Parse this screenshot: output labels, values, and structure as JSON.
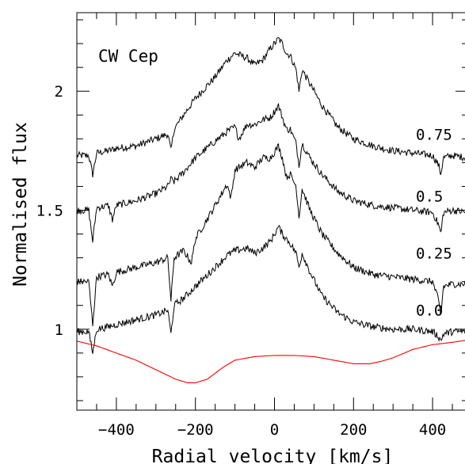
{
  "chart_data": {
    "type": "line",
    "annotation": "CW Cep",
    "xlabel": "Radial velocity [km/s]",
    "ylabel": "Normalised flux",
    "xlim": [
      -500,
      490
    ],
    "ylim": [
      0.66,
      2.33
    ],
    "x_ticks": [
      {
        "value": -400,
        "label": "−400"
      },
      {
        "value": -200,
        "label": "−200"
      },
      {
        "value": 0,
        "label": "0"
      },
      {
        "value": 200,
        "label": "200"
      },
      {
        "value": 400,
        "label": "400"
      }
    ],
    "y_ticks": [
      {
        "value": 1,
        "label": "1"
      },
      {
        "value": 1.5,
        "label": "1.5"
      },
      {
        "value": 2,
        "label": "2"
      }
    ],
    "grid": false,
    "series": [
      {
        "name": "0.75",
        "color": "#000000",
        "x": [
          -500,
          -470,
          -460,
          -450,
          -420,
          -400,
          -350,
          -300,
          -270,
          -262,
          -254,
          -230,
          -200,
          -150,
          -120,
          -100,
          -70,
          -50,
          -30,
          -10,
          10,
          20,
          30,
          40,
          55,
          62,
          70,
          90,
          120,
          160,
          200,
          250,
          300,
          350,
          400,
          415,
          421,
          427,
          450,
          490
        ],
        "y": [
          1.73,
          1.73,
          1.65,
          1.74,
          1.75,
          1.76,
          1.77,
          1.8,
          1.82,
          1.75,
          1.84,
          1.9,
          1.97,
          2.06,
          2.13,
          2.16,
          2.14,
          2.11,
          2.13,
          2.18,
          2.22,
          2.2,
          2.16,
          2.15,
          2.09,
          2.0,
          2.09,
          2.03,
          1.94,
          1.85,
          1.8,
          1.77,
          1.75,
          1.74,
          1.73,
          1.69,
          1.65,
          1.72,
          1.73,
          1.72
        ]
      },
      {
        "name": "0.5",
        "color": "#000000",
        "x": [
          -500,
          -470,
          -460,
          -450,
          -420,
          -410,
          -400,
          -350,
          -300,
          -270,
          -262,
          -254,
          -230,
          -200,
          -150,
          -120,
          -100,
          -90,
          -70,
          -50,
          -30,
          -10,
          10,
          20,
          30,
          40,
          55,
          62,
          70,
          90,
          120,
          160,
          200,
          250,
          300,
          350,
          400,
          415,
          421,
          427,
          450,
          490
        ],
        "y": [
          1.5,
          1.5,
          1.37,
          1.51,
          1.52,
          1.46,
          1.52,
          1.54,
          1.57,
          1.6,
          1.63,
          1.62,
          1.66,
          1.72,
          1.79,
          1.83,
          1.85,
          1.8,
          1.86,
          1.86,
          1.88,
          1.89,
          1.94,
          1.89,
          1.84,
          1.84,
          1.78,
          1.69,
          1.78,
          1.72,
          1.65,
          1.58,
          1.54,
          1.52,
          1.51,
          1.5,
          1.49,
          1.44,
          1.4,
          1.49,
          1.5,
          1.49
        ]
      },
      {
        "name": "0.25",
        "color": "#000000",
        "x": [
          -500,
          -470,
          -460,
          -450,
          -420,
          -410,
          -400,
          -350,
          -300,
          -270,
          -262,
          -254,
          -230,
          -210,
          -200,
          -150,
          -120,
          -110,
          -100,
          -70,
          -50,
          -30,
          -10,
          10,
          20,
          30,
          40,
          55,
          62,
          70,
          90,
          120,
          160,
          200,
          250,
          300,
          350,
          400,
          415,
          421,
          427,
          450,
          490
        ],
        "y": [
          1.2,
          1.2,
          1.02,
          1.22,
          1.23,
          1.18,
          1.24,
          1.26,
          1.28,
          1.3,
          1.12,
          1.3,
          1.33,
          1.28,
          1.38,
          1.52,
          1.61,
          1.55,
          1.67,
          1.7,
          1.68,
          1.72,
          1.72,
          1.77,
          1.72,
          1.64,
          1.65,
          1.6,
          1.47,
          1.59,
          1.5,
          1.4,
          1.32,
          1.26,
          1.23,
          1.22,
          1.21,
          1.2,
          1.12,
          1.05,
          1.18,
          1.19,
          1.19
        ]
      },
      {
        "name": "0.0",
        "color": "#000000",
        "x": [
          -500,
          -470,
          -460,
          -450,
          -420,
          -400,
          -350,
          -300,
          -270,
          -262,
          -254,
          -230,
          -200,
          -150,
          -120,
          -100,
          -70,
          -50,
          -30,
          -10,
          10,
          20,
          30,
          40,
          55,
          62,
          70,
          90,
          120,
          160,
          200,
          250,
          300,
          350,
          400,
          415,
          421,
          427,
          450,
          490
        ],
        "y": [
          0.99,
          0.99,
          0.9,
          1.0,
          1.01,
          1.02,
          1.04,
          1.06,
          1.08,
          0.98,
          1.1,
          1.13,
          1.18,
          1.26,
          1.31,
          1.33,
          1.34,
          1.32,
          1.34,
          1.37,
          1.43,
          1.4,
          1.38,
          1.36,
          1.32,
          1.26,
          1.32,
          1.24,
          1.14,
          1.07,
          1.03,
          1.01,
          1.0,
          1.0,
          0.99,
          0.97,
          0.95,
          0.98,
          0.99,
          0.99
        ]
      },
      {
        "name": "",
        "color": "#ff0000",
        "x": [
          -500,
          -450,
          -400,
          -350,
          -300,
          -250,
          -220,
          -200,
          -170,
          -130,
          -100,
          -50,
          0,
          50,
          100,
          150,
          200,
          240,
          270,
          300,
          350,
          400,
          450,
          490
        ],
        "y": [
          0.95,
          0.93,
          0.9,
          0.87,
          0.83,
          0.79,
          0.775,
          0.775,
          0.79,
          0.84,
          0.87,
          0.885,
          0.89,
          0.89,
          0.885,
          0.87,
          0.855,
          0.855,
          0.865,
          0.88,
          0.915,
          0.935,
          0.945,
          0.955
        ]
      }
    ],
    "curve_labels": [
      {
        "text": "0.75",
        "y": 1.82
      },
      {
        "text": "0.5",
        "y": 1.56
      },
      {
        "text": "0.25",
        "y": 1.32
      },
      {
        "text": "0.0",
        "y": 1.08
      }
    ]
  }
}
